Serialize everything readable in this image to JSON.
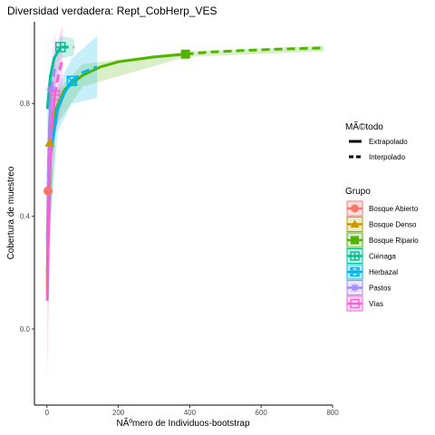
{
  "chart_data": {
    "type": "line",
    "title": "Diversidad verdadera: Rept_CobHerp_VES",
    "xlabel": "NÃºmero de Individuos-bootstrap",
    "ylabel": "Cobertura de muestreo",
    "xlim": [
      -35,
      800
    ],
    "ylim": [
      -0.27,
      1.09
    ],
    "xticks": [
      0,
      200,
      400,
      600,
      800
    ],
    "xtick_labels": [
      "0",
      "200",
      "400",
      "600",
      "800"
    ],
    "yticks": [
      0.0,
      0.4,
      0.8
    ],
    "ytick_labels": [
      "0.0",
      "0.4",
      "0.8"
    ],
    "grid": false,
    "legend_placement": "right",
    "legend_method": {
      "title": "MÃ©todo",
      "entries": [
        "Extrapolado",
        "Interpolado"
      ]
    },
    "legend_group": {
      "title": "Grupo",
      "entries": [
        "Bosque Abierto",
        "Bosque Denso",
        "Bosque Ripario",
        "Ciénaga",
        "Herbazal",
        "Pastos",
        "Vías"
      ]
    },
    "series": [
      {
        "name": "Bosque Abierto",
        "color": "#F8766D",
        "marker": "circle",
        "observed": [
          3,
          0.49
        ],
        "interpolated": [
          [
            1,
            0.12
          ],
          [
            2,
            0.33
          ],
          [
            3,
            0.49
          ]
        ],
        "extrapolated": [
          [
            3,
            0.49
          ],
          [
            4,
            0.58
          ],
          [
            5,
            0.63
          ],
          [
            6,
            0.66
          ]
        ],
        "band": [
          [
            1,
            0.08,
            0.16
          ],
          [
            3,
            0.4,
            0.58
          ],
          [
            6,
            0.52,
            0.8
          ]
        ]
      },
      {
        "name": "Bosque Denso",
        "color": "#C49A00",
        "marker": "triangle",
        "observed": [
          8,
          0.66
        ],
        "interpolated": [
          [
            1,
            0.15
          ],
          [
            4,
            0.52
          ],
          [
            8,
            0.66
          ]
        ],
        "extrapolated": [
          [
            8,
            0.66
          ],
          [
            12,
            0.73
          ],
          [
            16,
            0.77
          ]
        ],
        "band": [
          [
            1,
            0.1,
            0.2
          ],
          [
            8,
            0.58,
            0.74
          ],
          [
            16,
            0.66,
            0.88
          ]
        ]
      },
      {
        "name": "Bosque Ripario",
        "color": "#53B400",
        "marker": "square",
        "observed": [
          388,
          0.975
        ],
        "interpolated": [
          [
            1,
            0.2
          ],
          [
            10,
            0.62
          ],
          [
            25,
            0.78
          ],
          [
            50,
            0.85
          ],
          [
            100,
            0.9
          ],
          [
            150,
            0.93
          ],
          [
            200,
            0.948
          ],
          [
            300,
            0.965
          ],
          [
            388,
            0.975
          ]
        ],
        "extrapolated": [
          [
            388,
            0.975
          ],
          [
            450,
            0.982
          ],
          [
            550,
            0.988
          ],
          [
            650,
            0.993
          ],
          [
            776,
            0.997
          ]
        ],
        "band": [
          [
            1,
            0.15,
            0.25
          ],
          [
            25,
            0.72,
            0.84
          ],
          [
            100,
            0.86,
            0.94
          ],
          [
            388,
            0.965,
            0.985
          ],
          [
            776,
            0.985,
            1.005
          ]
        ]
      },
      {
        "name": "Ciénaga",
        "color": "#00C094",
        "marker": "square-cross",
        "observed": [
          38,
          1.0
        ],
        "interpolated": [
          [
            1,
            0.78
          ],
          [
            10,
            0.9
          ],
          [
            20,
            0.96
          ],
          [
            38,
            1.0
          ]
        ],
        "extrapolated": [
          [
            38,
            1.0
          ],
          [
            60,
            1.0
          ],
          [
            76,
            1.0
          ]
        ],
        "band": [
          [
            1,
            0.7,
            0.86
          ],
          [
            38,
            0.96,
            1.04
          ],
          [
            76,
            0.97,
            1.03
          ]
        ]
      },
      {
        "name": "Herbazal",
        "color": "#00B6EB",
        "marker": "square-x",
        "observed": [
          70,
          0.88
        ],
        "interpolated": [
          [
            1,
            0.32
          ],
          [
            10,
            0.62
          ],
          [
            30,
            0.78
          ],
          [
            50,
            0.84
          ],
          [
            70,
            0.88
          ]
        ],
        "extrapolated": [
          [
            70,
            0.88
          ],
          [
            100,
            0.91
          ],
          [
            140,
            0.93
          ]
        ],
        "band": [
          [
            1,
            0.25,
            0.4
          ],
          [
            30,
            0.7,
            0.86
          ],
          [
            70,
            0.8,
            0.96
          ],
          [
            140,
            0.82,
            1.04
          ]
        ]
      },
      {
        "name": "Pastos",
        "color": "#A58AFF",
        "marker": "asterisk",
        "observed": [
          12,
          0.85
        ],
        "interpolated": [
          [
            1,
            0.3
          ],
          [
            6,
            0.7
          ],
          [
            12,
            0.85
          ]
        ],
        "extrapolated": [
          [
            12,
            0.85
          ],
          [
            18,
            0.9
          ],
          [
            24,
            0.93
          ]
        ],
        "band": [
          [
            1,
            0.22,
            0.38
          ],
          [
            12,
            0.76,
            0.94
          ],
          [
            24,
            0.78,
            1.06
          ]
        ]
      },
      {
        "name": "Vías",
        "color": "#FB61D7",
        "marker": "square-minus",
        "observed": [
          22,
          0.83
        ],
        "interpolated": [
          [
            1,
            0.1
          ],
          [
            6,
            0.5
          ],
          [
            12,
            0.7
          ],
          [
            22,
            0.83
          ]
        ],
        "extrapolated": [
          [
            22,
            0.83
          ],
          [
            32,
            0.9
          ],
          [
            44,
            0.96
          ]
        ],
        "band": [
          [
            1,
            -0.18,
            0.4
          ],
          [
            12,
            0.5,
            0.9
          ],
          [
            22,
            0.68,
            0.98
          ],
          [
            44,
            0.8,
            1.08
          ]
        ]
      }
    ]
  }
}
